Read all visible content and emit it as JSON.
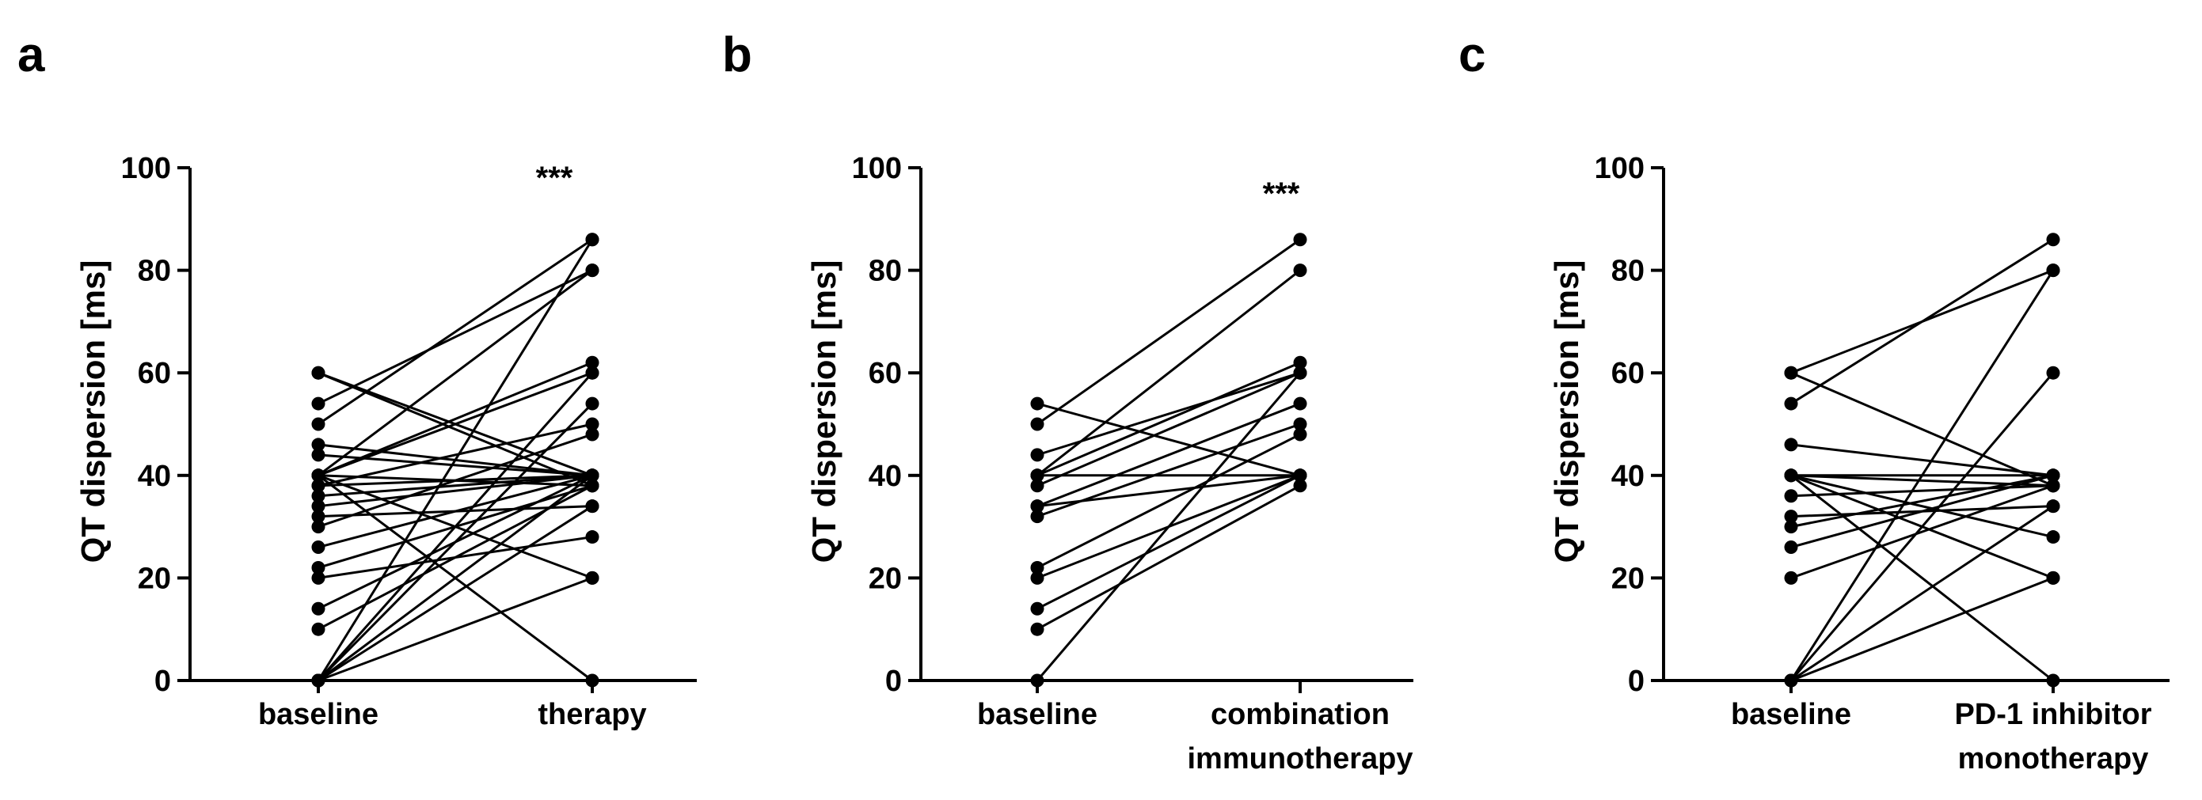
{
  "chart_data": [
    {
      "panel": "a",
      "type": "line",
      "ylabel": "QT dispersion [ms]",
      "ylim": [
        0,
        100
      ],
      "yticks": [
        0,
        20,
        40,
        60,
        80,
        100
      ],
      "categories": [
        [
          "baseline"
        ],
        [
          "therapy"
        ]
      ],
      "significance": "***",
      "pairs": [
        [
          60,
          40
        ],
        [
          60,
          38
        ],
        [
          54,
          80
        ],
        [
          50,
          86
        ],
        [
          46,
          40
        ],
        [
          44,
          40
        ],
        [
          40,
          80
        ],
        [
          40,
          62
        ],
        [
          40,
          60
        ],
        [
          40,
          38
        ],
        [
          40,
          20
        ],
        [
          40,
          0
        ],
        [
          38,
          50
        ],
        [
          38,
          40
        ],
        [
          36,
          40
        ],
        [
          34,
          40
        ],
        [
          32,
          34
        ],
        [
          30,
          48
        ],
        [
          26,
          40
        ],
        [
          22,
          38
        ],
        [
          20,
          28
        ],
        [
          14,
          40
        ],
        [
          10,
          38
        ],
        [
          0,
          86
        ],
        [
          0,
          60
        ],
        [
          0,
          54
        ],
        [
          0,
          40
        ],
        [
          0,
          34
        ],
        [
          0,
          20
        ]
      ]
    },
    {
      "panel": "b",
      "type": "line",
      "ylabel": "QT dispersion [ms]",
      "ylim": [
        0,
        100
      ],
      "yticks": [
        0,
        20,
        40,
        60,
        80,
        100
      ],
      "categories": [
        [
          "baseline"
        ],
        [
          "combination",
          "immunotherapy"
        ]
      ],
      "significance": "***",
      "pairs": [
        [
          54,
          40
        ],
        [
          50,
          86
        ],
        [
          44,
          60
        ],
        [
          40,
          80
        ],
        [
          40,
          62
        ],
        [
          40,
          40
        ],
        [
          38,
          60
        ],
        [
          34,
          54
        ],
        [
          34,
          40
        ],
        [
          32,
          50
        ],
        [
          22,
          48
        ],
        [
          20,
          40
        ],
        [
          14,
          40
        ],
        [
          10,
          38
        ],
        [
          0,
          60
        ]
      ]
    },
    {
      "panel": "c",
      "type": "line",
      "ylabel": "QT dispersion [ms]",
      "ylim": [
        0,
        100
      ],
      "yticks": [
        0,
        20,
        40,
        60,
        80,
        100
      ],
      "categories": [
        [
          "baseline"
        ],
        [
          "PD-1 inhibitor",
          "monotherapy"
        ]
      ],
      "significance": "",
      "pairs": [
        [
          60,
          80
        ],
        [
          60,
          38
        ],
        [
          54,
          86
        ],
        [
          46,
          40
        ],
        [
          40,
          40
        ],
        [
          40,
          38
        ],
        [
          40,
          28
        ],
        [
          40,
          20
        ],
        [
          40,
          0
        ],
        [
          36,
          38
        ],
        [
          32,
          34
        ],
        [
          30,
          40
        ],
        [
          26,
          40
        ],
        [
          20,
          38
        ],
        [
          0,
          80
        ],
        [
          0,
          60
        ],
        [
          0,
          34
        ],
        [
          0,
          20
        ]
      ]
    }
  ]
}
